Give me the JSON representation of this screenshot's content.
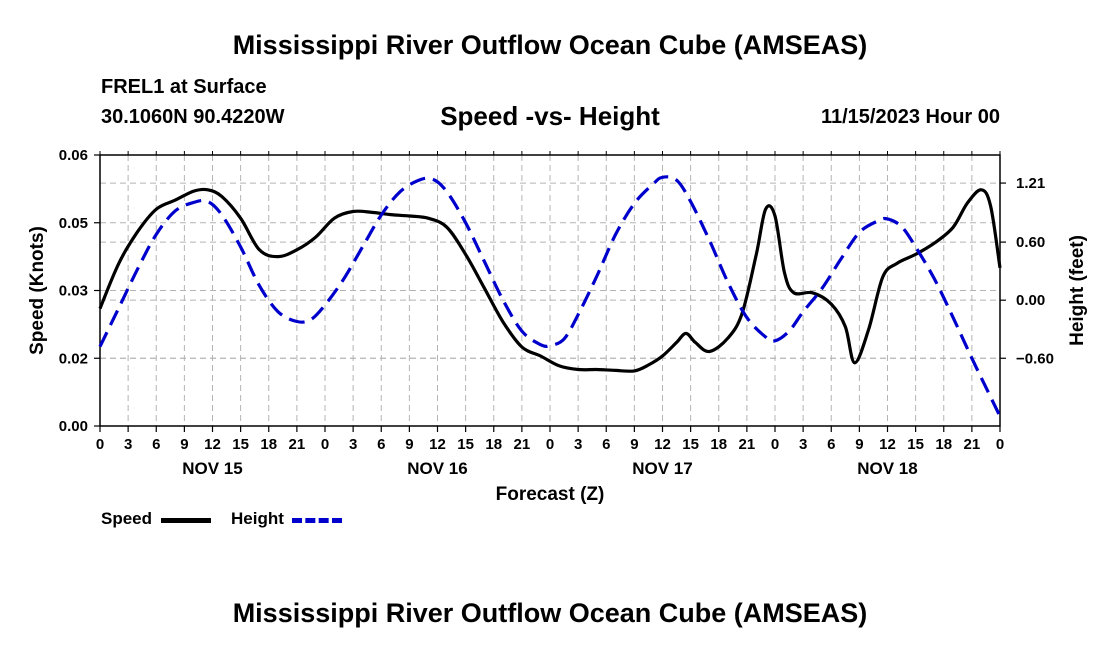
{
  "header": {
    "title": "Mississippi River Outflow Ocean Cube (AMSEAS)",
    "station": "FREL1 at Surface",
    "coords": "30.1060N  90.4220W",
    "subtitle": "Speed -vs- Height",
    "datetime": "11/15/2023 Hour 00",
    "footer_title": "Mississippi River Outflow Ocean Cube (AMSEAS)"
  },
  "legend": {
    "speed_label": "Speed",
    "height_label": "Height"
  },
  "colors": {
    "speed": "#000000",
    "height": "#0000cc",
    "grid": "#b4b4b4"
  },
  "chart_data": {
    "type": "line",
    "xlabel": "Forecast (Z)",
    "ylabel_left": "Speed (Knots)",
    "ylabel_right": "Height (feet)",
    "xlim": [
      0,
      96
    ],
    "ylim_left": [
      0,
      0.06
    ],
    "ylim_right": [
      -1.3,
      1.5
    ],
    "left_ticks": [
      "0.00",
      "0.02",
      "0.03",
      "0.05",
      "0.06"
    ],
    "left_tick_values": [
      0,
      0.015,
      0.03,
      0.045,
      0.06
    ],
    "right_ticks": [
      "1.21",
      "0.60",
      "0.00",
      "−0.60"
    ],
    "right_tick_values": [
      1.21,
      0.6,
      0.0,
      -0.6
    ],
    "x_tick_labels": [
      "0",
      "3",
      "6",
      "9",
      "12",
      "15",
      "18",
      "21",
      "0",
      "3",
      "6",
      "9",
      "12",
      "15",
      "18",
      "21",
      "0",
      "3",
      "6",
      "9",
      "12",
      "15",
      "18",
      "21",
      "0",
      "3",
      "6",
      "9",
      "12",
      "15",
      "18",
      "21",
      "0"
    ],
    "x_tick_hours": [
      0,
      3,
      6,
      9,
      12,
      15,
      18,
      21,
      24,
      27,
      30,
      33,
      36,
      39,
      42,
      45,
      48,
      51,
      54,
      57,
      60,
      63,
      66,
      69,
      72,
      75,
      78,
      81,
      84,
      87,
      90,
      93,
      96
    ],
    "day_labels": [
      "NOV 15",
      "NOV 16",
      "NOV 17",
      "NOV 18"
    ],
    "day_label_hours": [
      12,
      36,
      60,
      84
    ],
    "series": [
      {
        "name": "Speed",
        "axis": "left",
        "x": [
          0,
          2,
          4,
          6,
          8,
          10,
          11.5,
          13,
          15,
          17,
          19,
          21,
          23,
          25,
          27,
          29,
          31,
          33,
          35,
          37,
          39,
          41,
          43,
          45,
          47,
          49,
          51,
          53,
          55,
          57,
          58.5,
          60,
          61.5,
          62.5,
          63.5,
          65,
          67,
          68.5,
          70,
          71,
          72,
          73,
          74,
          76,
          78,
          79.5,
          80.5,
          82,
          83.5,
          85,
          87,
          89,
          91,
          92.5,
          94,
          95,
          96
        ],
        "y": [
          0.026,
          0.036,
          0.043,
          0.048,
          0.05,
          0.052,
          0.0523,
          0.0508,
          0.046,
          0.039,
          0.0375,
          0.039,
          0.0418,
          0.046,
          0.0475,
          0.0473,
          0.0468,
          0.0465,
          0.046,
          0.044,
          0.038,
          0.0305,
          0.023,
          0.0175,
          0.0155,
          0.0133,
          0.0125,
          0.0125,
          0.0123,
          0.0122,
          0.0135,
          0.0155,
          0.0185,
          0.0205,
          0.0185,
          0.0165,
          0.0195,
          0.025,
          0.038,
          0.048,
          0.0465,
          0.034,
          0.0295,
          0.0295,
          0.027,
          0.022,
          0.014,
          0.0215,
          0.033,
          0.036,
          0.038,
          0.0405,
          0.044,
          0.0493,
          0.0523,
          0.0487,
          0.035
        ]
      },
      {
        "name": "Height",
        "axis": "right",
        "x": [
          0,
          2,
          4,
          6,
          8,
          10,
          11.5,
          13,
          15,
          17,
          19,
          21,
          22.5,
          24,
          26,
          28,
          30,
          32,
          34,
          35.5,
          37,
          39,
          41,
          43,
          45,
          47,
          48,
          49.5,
          51,
          53,
          55,
          57,
          59,
          60,
          61.5,
          63,
          65,
          67,
          69,
          71,
          72,
          73.5,
          75,
          77,
          79,
          81,
          83,
          84,
          85.5,
          87,
          89,
          91,
          93,
          95,
          96
        ],
        "y": [
          -0.48,
          -0.08,
          0.32,
          0.68,
          0.92,
          1.01,
          1.02,
          0.88,
          0.55,
          0.15,
          -0.12,
          -0.22,
          -0.2,
          -0.05,
          0.22,
          0.55,
          0.88,
          1.12,
          1.24,
          1.25,
          1.12,
          0.8,
          0.4,
          0.0,
          -0.32,
          -0.46,
          -0.47,
          -0.4,
          -0.15,
          0.25,
          0.68,
          1.0,
          1.2,
          1.27,
          1.24,
          1.02,
          0.62,
          0.18,
          -0.18,
          -0.38,
          -0.42,
          -0.32,
          -0.12,
          0.12,
          0.42,
          0.7,
          0.82,
          0.84,
          0.76,
          0.55,
          0.22,
          -0.18,
          -0.6,
          -1.0,
          -1.2
        ]
      }
    ]
  }
}
